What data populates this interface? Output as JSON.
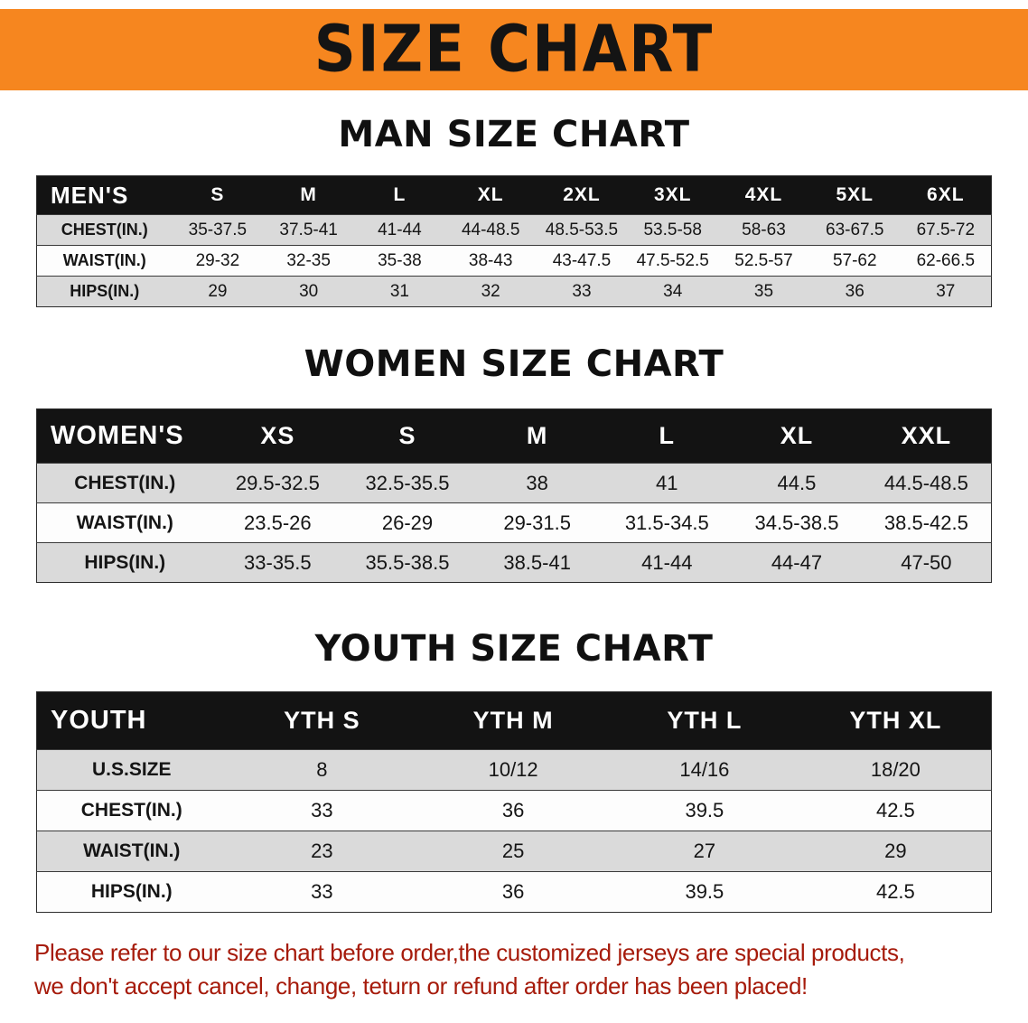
{
  "banner": {
    "title": "SIZE CHART",
    "background_color": "#F6861F"
  },
  "chart_data": [
    {
      "type": "table",
      "title": "MAN SIZE CHART",
      "columns": [
        "MEN'S",
        "S",
        "M",
        "L",
        "XL",
        "2XL",
        "3XL",
        "4XL",
        "5XL",
        "6XL"
      ],
      "rows": [
        [
          "CHEST(IN.)",
          "35-37.5",
          "37.5-41",
          "41-44",
          "44-48.5",
          "48.5-53.5",
          "53.5-58",
          "58-63",
          "63-67.5",
          "67.5-72"
        ],
        [
          "WAIST(IN.)",
          "29-32",
          "32-35",
          "35-38",
          "38-43",
          "43-47.5",
          "47.5-52.5",
          "52.5-57",
          "57-62",
          "62-66.5"
        ],
        [
          "HIPS(IN.)",
          "29",
          "30",
          "31",
          "32",
          "33",
          "34",
          "35",
          "36",
          "37"
        ]
      ]
    },
    {
      "type": "table",
      "title": "WOMEN SIZE CHART",
      "columns": [
        "WOMEN'S",
        "XS",
        "S",
        "M",
        "L",
        "XL",
        "XXL"
      ],
      "rows": [
        [
          "CHEST(IN.)",
          "29.5-32.5",
          "32.5-35.5",
          "38",
          "41",
          "44.5",
          "44.5-48.5"
        ],
        [
          "WAIST(IN.)",
          "23.5-26",
          "26-29",
          "29-31.5",
          "31.5-34.5",
          "34.5-38.5",
          "38.5-42.5"
        ],
        [
          "HIPS(IN.)",
          "33-35.5",
          "35.5-38.5",
          "38.5-41",
          "41-44",
          "44-47",
          "47-50"
        ]
      ]
    },
    {
      "type": "table",
      "title": "YOUTH SIZE CHART",
      "columns": [
        "YOUTH",
        "YTH S",
        "YTH M",
        "YTH L",
        "YTH XL"
      ],
      "rows": [
        [
          "U.S.SIZE",
          "8",
          "10/12",
          "14/16",
          "18/20"
        ],
        [
          "CHEST(IN.)",
          "33",
          "36",
          "39.5",
          "42.5"
        ],
        [
          "WAIST(IN.)",
          "23",
          "25",
          "27",
          "29"
        ],
        [
          "HIPS(IN.)",
          "33",
          "36",
          "39.5",
          "42.5"
        ]
      ]
    }
  ],
  "disclaimer": {
    "line1": "Please refer to our size chart before order,the customized jerseys are special products,",
    "line2": "we don't accept cancel, change, teturn or refund after order has been placed!",
    "color": "#A61B0B"
  }
}
